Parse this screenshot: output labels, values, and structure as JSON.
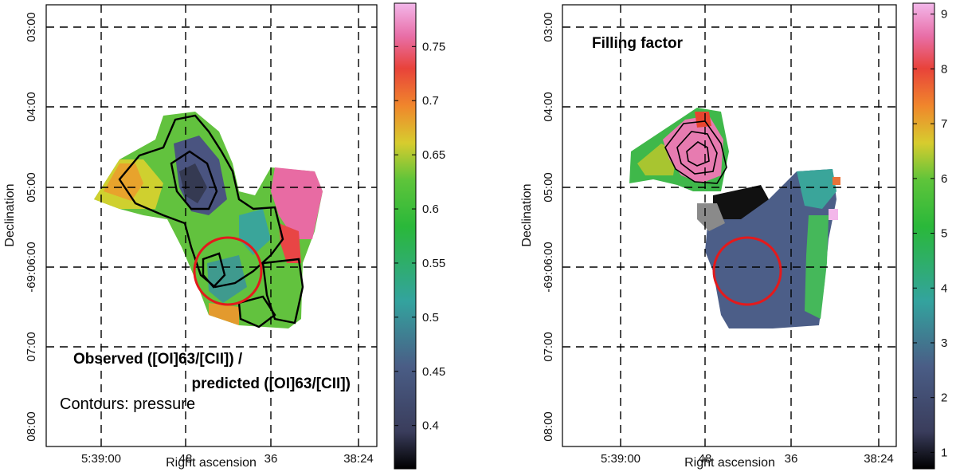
{
  "chart_data": [
    {
      "type": "heatmap",
      "title": "",
      "xlabel": "Right ascension",
      "ylabel": "Declination",
      "x_ticks": [
        "5:39:00",
        "48",
        "36",
        "38:24"
      ],
      "y_ticks": [
        "03:00",
        "04:00",
        "05:00",
        "-69:06:00",
        "07:00",
        "08:00"
      ],
      "colorbar": {
        "ticks": [
          0.4,
          0.45,
          0.5,
          0.55,
          0.6,
          0.65,
          0.7,
          0.75
        ],
        "tick_labels": [
          "0.4",
          "0.45",
          "0.5",
          "0.55",
          "0.6",
          "0.65",
          "0.7",
          "0.75"
        ],
        "range": [
          0.36,
          0.79
        ]
      },
      "annotations": [
        "Observed ([OI]63/[CII]) /",
        "predicted ([OI]63/[CII])",
        "Contours: pressure"
      ],
      "marker": "red circle",
      "colors": {
        "marker": "#e31a1c",
        "contour": "#000000"
      }
    },
    {
      "type": "heatmap",
      "title": "Filling factor",
      "xlabel": "Right ascension",
      "ylabel": "Declination",
      "x_ticks": [
        "5:39:00",
        "48",
        "36",
        "38:24"
      ],
      "y_ticks": [
        "03:00",
        "04:00",
        "05:00",
        "-69:06:00",
        "07:00",
        "08:00"
      ],
      "colorbar": {
        "ticks": [
          1,
          2,
          3,
          4,
          5,
          6,
          7,
          8,
          9
        ],
        "tick_labels": [
          "1",
          "2",
          "3",
          "4",
          "5",
          "6",
          "7",
          "8",
          "9"
        ],
        "range": [
          0.7,
          9.2
        ]
      },
      "annotations": [],
      "marker": "red circle",
      "colors": {
        "marker": "#e31a1c",
        "contour": "#000000"
      }
    }
  ]
}
